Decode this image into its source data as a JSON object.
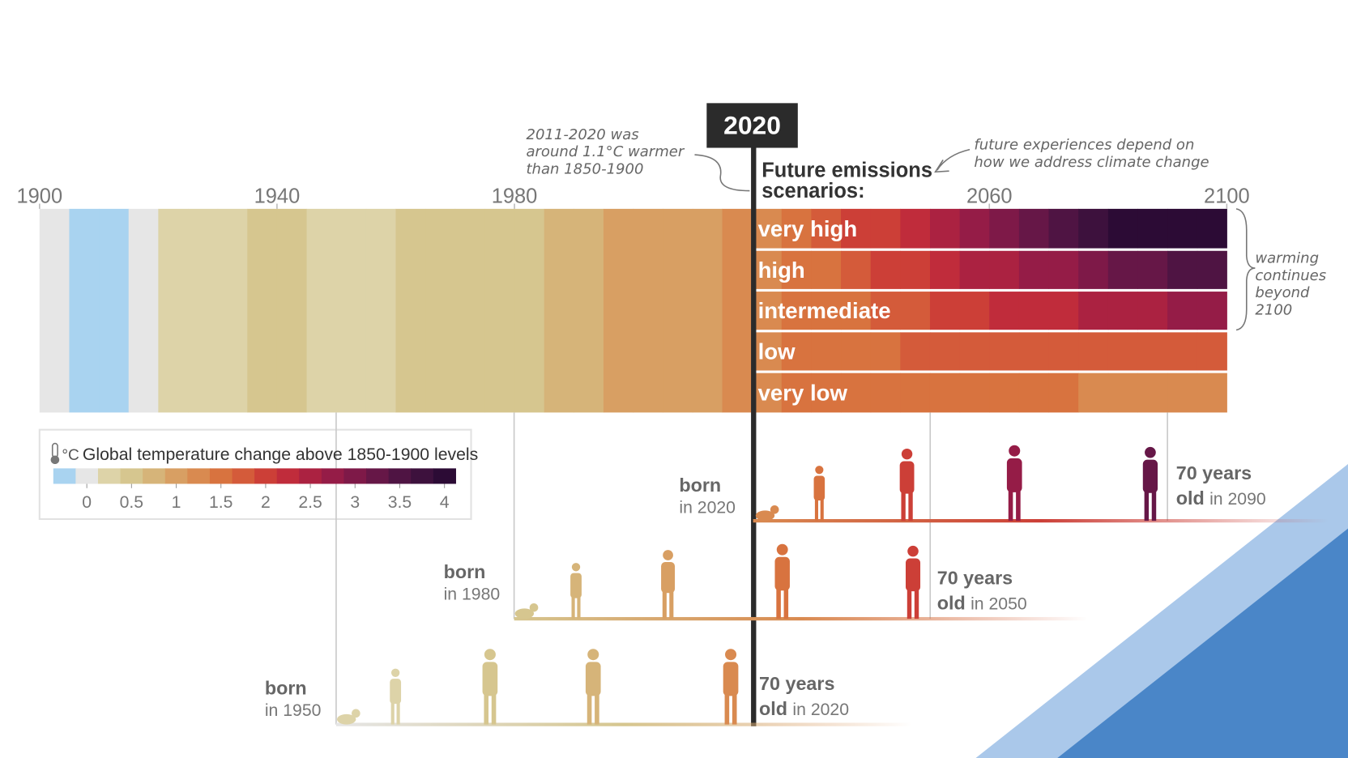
{
  "chart_data": {
    "type": "stripes",
    "xlim": [
      1900,
      2100
    ],
    "xticks": [
      1900,
      1940,
      1980,
      2060,
      2100
    ],
    "now": 2020,
    "annotations": {
      "past": [
        "2011-2020 was",
        "around 1.1°C warmer",
        "than 1850-1900"
      ],
      "scenarios_title": [
        "Future emissions",
        "scenarios:"
      ],
      "future": [
        "future experiences depend on",
        "how we address climate change"
      ],
      "beyond": [
        "warming",
        "continues",
        "beyond",
        "2100"
      ]
    },
    "history": {
      "x": [
        1900,
        1905,
        1910,
        1915,
        1920,
        1925,
        1930,
        1935,
        1940,
        1945,
        1950,
        1955,
        1960,
        1965,
        1970,
        1975,
        1980,
        1985,
        1990,
        1995,
        2000,
        2005,
        2010,
        2015
      ],
      "values": [
        0.05,
        -0.2,
        -0.2,
        0.1,
        0.15,
        0.3,
        0.35,
        0.45,
        0.4,
        0.3,
        0.35,
        0.35,
        0.4,
        0.5,
        0.45,
        0.55,
        0.6,
        0.75,
        0.8,
        0.9,
        0.95,
        1.05,
        1.1,
        1.15
      ]
    },
    "future_x": [
      2020,
      2025,
      2030,
      2035,
      2040,
      2045,
      2050,
      2055,
      2060,
      2065,
      2070,
      2075,
      2080,
      2085,
      2090,
      2095
    ],
    "series": [
      {
        "name": "very high",
        "values": [
          1.3,
          1.5,
          1.7,
          1.9,
          2.1,
          2.3,
          2.5,
          2.75,
          3.0,
          3.2,
          3.45,
          3.7,
          3.9,
          4.0,
          4.05,
          4.1
        ]
      },
      {
        "name": "high",
        "values": [
          1.3,
          1.45,
          1.6,
          1.75,
          1.9,
          2.05,
          2.2,
          2.4,
          2.55,
          2.7,
          2.85,
          3.0,
          3.15,
          3.3,
          3.45,
          3.6
        ]
      },
      {
        "name": "intermediate",
        "values": [
          1.3,
          1.4,
          1.5,
          1.6,
          1.75,
          1.85,
          1.95,
          2.05,
          2.15,
          2.25,
          2.35,
          2.45,
          2.5,
          2.6,
          2.65,
          2.7
        ]
      },
      {
        "name": "low",
        "values": [
          1.3,
          1.4,
          1.5,
          1.55,
          1.6,
          1.7,
          1.75,
          1.8,
          1.8,
          1.85,
          1.8,
          1.85,
          1.8,
          1.8,
          1.8,
          1.75
        ]
      },
      {
        "name": "very low",
        "values": [
          1.3,
          1.4,
          1.45,
          1.5,
          1.55,
          1.5,
          1.5,
          1.45,
          1.45,
          1.4,
          1.4,
          1.35,
          1.35,
          1.3,
          1.3,
          1.3
        ]
      }
    ],
    "legend": {
      "unit": "°C",
      "title": "Global temperature change above 1850-1900 levels",
      "clim": [
        -0.375,
        4.125
      ],
      "ticks": [
        0,
        0.5,
        1,
        1.5,
        2,
        2.5,
        3,
        3.5,
        4
      ],
      "colors": [
        "#a9d3f0",
        "#e6e6e6",
        "#ddd3a8",
        "#d6c68f",
        "#d6b479",
        "#d89f63",
        "#d98a50",
        "#d8733f",
        "#d45b3a",
        "#cc3f37",
        "#c02c3b",
        "#ab2241",
        "#951c47",
        "#7e1948",
        "#661747",
        "#4f1443",
        "#3d113d",
        "#2c0b35"
      ]
    },
    "lifetimes": [
      {
        "born": "born",
        "born_year": "in 2020",
        "age": "70 years",
        "old": "old",
        "end_year": "in 2090"
      },
      {
        "born": "born",
        "born_year": "in 1980",
        "age": "70 years",
        "old": "old",
        "end_year": "in 2050"
      },
      {
        "born": "born",
        "born_year": "in 1950",
        "age": "70 years",
        "old": "old",
        "end_year": "in 2020"
      }
    ]
  }
}
